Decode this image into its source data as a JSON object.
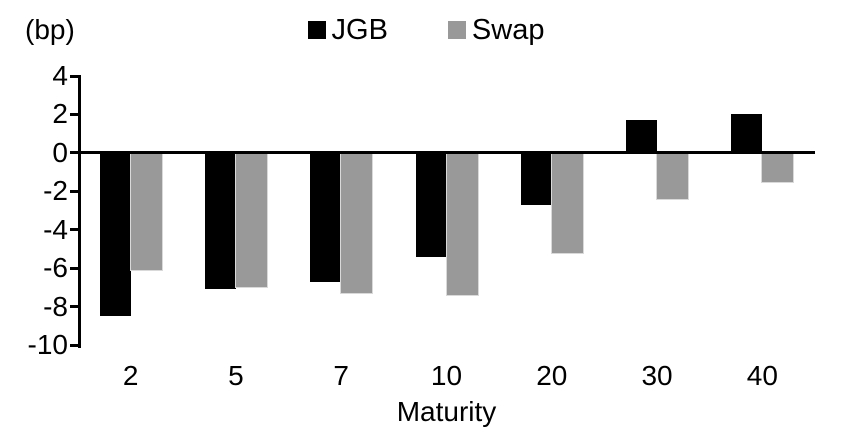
{
  "chart_data": {
    "type": "bar",
    "title": "",
    "unit_label": "(bp)",
    "xlabel": "Maturity",
    "ylabel": "",
    "categories": [
      "2",
      "5",
      "7",
      "10",
      "20",
      "30",
      "40"
    ],
    "series": [
      {
        "name": "JGB",
        "color": "#000000",
        "values": [
          -8.5,
          -7.1,
          -6.7,
          -5.4,
          -2.7,
          1.7,
          2.0
        ]
      },
      {
        "name": "Swap",
        "color": "#999999",
        "values": [
          -6.1,
          -7.0,
          -7.3,
          -7.4,
          -5.2,
          -2.4,
          -1.5
        ]
      }
    ],
    "ylim": [
      -10,
      4
    ],
    "yticks": [
      4,
      2,
      0,
      -2,
      -4,
      -6,
      -8,
      -10
    ],
    "legend_position": "top-center",
    "grid": false,
    "baseline": 0
  }
}
